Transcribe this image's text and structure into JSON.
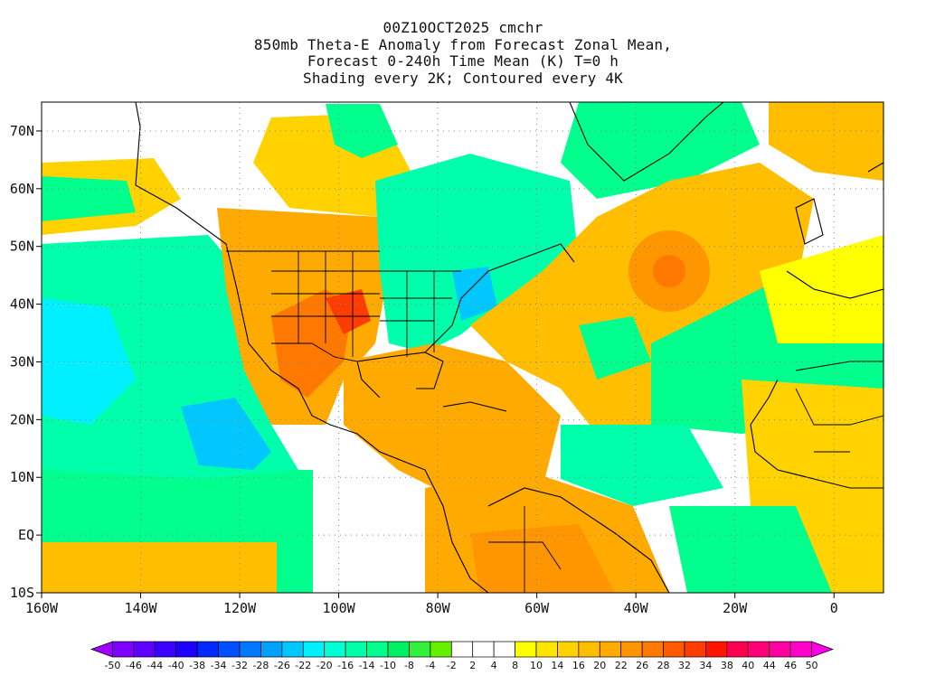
{
  "title_lines": [
    "00Z10OCT2025 cmchr",
    "850mb Theta-E Anomaly from Forecast Zonal Mean,",
    "Forecast 0-240h Time Mean (K) T=0 h",
    "Shading every 2K; Contoured every 4K"
  ],
  "map": {
    "lon_range": [
      -160,
      10
    ],
    "lat_range": [
      -10,
      75
    ],
    "lat_ticks": [
      {
        "value": 70,
        "label": "70N"
      },
      {
        "value": 60,
        "label": "60N"
      },
      {
        "value": 50,
        "label": "50N"
      },
      {
        "value": 40,
        "label": "40N"
      },
      {
        "value": 30,
        "label": "30N"
      },
      {
        "value": 20,
        "label": "20N"
      },
      {
        "value": 10,
        "label": "10N"
      },
      {
        "value": 0,
        "label": "EQ"
      },
      {
        "value": -10,
        "label": "10S"
      }
    ],
    "lon_ticks": [
      {
        "value": -160,
        "label": "160W"
      },
      {
        "value": -140,
        "label": "140W"
      },
      {
        "value": -120,
        "label": "120W"
      },
      {
        "value": -100,
        "label": "100W"
      },
      {
        "value": -80,
        "label": "80W"
      },
      {
        "value": -60,
        "label": "60W"
      },
      {
        "value": -40,
        "label": "40W"
      },
      {
        "value": -20,
        "label": "20W"
      },
      {
        "value": 0,
        "label": "0"
      }
    ],
    "gridlines": "dotted"
  },
  "colorbar": {
    "labels": [
      "-50",
      "-46",
      "-44",
      "-40",
      "-38",
      "-34",
      "-32",
      "-28",
      "-26",
      "-22",
      "-20",
      "-16",
      "-14",
      "-10",
      "-8",
      "-4",
      "-2",
      "2",
      "4",
      "8",
      "10",
      "14",
      "16",
      "20",
      "22",
      "26",
      "28",
      "32",
      "34",
      "38",
      "40",
      "44",
      "46",
      "50"
    ],
    "colors": [
      "#a000ff",
      "#8000ff",
      "#5f00ff",
      "#3c00ff",
      "#1e00ff",
      "#0028ff",
      "#0050ff",
      "#0078ff",
      "#00a0ff",
      "#00c8ff",
      "#00f0ff",
      "#00ffd2",
      "#00ffaa",
      "#00ff8c",
      "#00f064",
      "#32f03c",
      "#64f000",
      "#ffffff",
      "#ffffff",
      "#ffffff",
      "#ffff00",
      "#ffe600",
      "#ffd200",
      "#ffbe00",
      "#ffaa00",
      "#ff9600",
      "#ff7800",
      "#ff5a00",
      "#ff3c00",
      "#ff1400",
      "#ff0050",
      "#ff0078",
      "#ff00a0",
      "#ff00c8",
      "#ff00e6"
    ]
  }
}
